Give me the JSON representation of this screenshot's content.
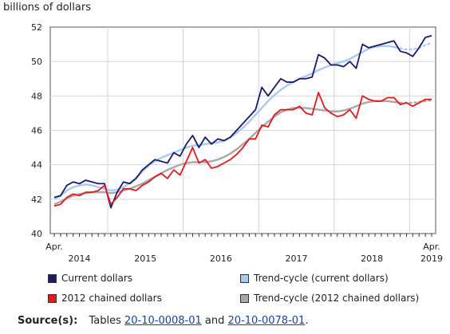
{
  "colors": {
    "current": "#1a1a6e",
    "trend_current": "#a9c9ee",
    "chained": "#e3191c",
    "trend_chained": "#a8a8a8"
  },
  "legend": {
    "current": "Current dollars",
    "trend_current": "Trend-cycle (current dollars)",
    "chained": "2012 chained dollars",
    "trend_chained": "Trend-cycle (2012 chained dollars)"
  },
  "source": {
    "label": "Source(s):",
    "prefix": "Tables",
    "table1": "20-10-0008-01",
    "and": "and",
    "table2": "20-10-0078-01",
    "end": "."
  },
  "chart_data": {
    "type": "line",
    "unit_label": "billions of dollars",
    "x_start": "2014-04",
    "x_end": "2019-04",
    "ylim": [
      40,
      52
    ],
    "yticks": [
      40,
      42,
      44,
      46,
      48,
      50,
      52
    ],
    "x_month_labels": [
      {
        "month": "2014-04",
        "text": "Apr."
      },
      {
        "month": "2019-04",
        "text": "Apr."
      }
    ],
    "x_year_labels": [
      "2014",
      "2015",
      "2016",
      "2017",
      "2018",
      "2019"
    ],
    "grid": true,
    "series": [
      {
        "name": "Current dollars",
        "key": "current",
        "values": [
          42.1,
          42.2,
          42.8,
          43.0,
          42.9,
          43.1,
          43.0,
          42.9,
          42.9,
          41.5,
          42.4,
          43.0,
          42.9,
          43.2,
          43.7,
          44.0,
          44.3,
          44.2,
          44.1,
          44.7,
          44.5,
          45.2,
          45.7,
          45.0,
          45.6,
          45.2,
          45.5,
          45.4,
          45.6,
          46.0,
          46.4,
          46.8,
          47.2,
          48.5,
          48.0,
          48.5,
          49.0,
          48.8,
          48.8,
          49.0,
          49.0,
          49.1,
          50.4,
          50.2,
          49.8,
          49.8,
          49.7,
          50.0,
          49.6,
          51.0,
          50.8,
          50.9,
          51.0,
          51.1,
          51.2,
          50.6,
          50.5,
          50.3,
          50.8,
          51.4,
          51.5
        ]
      },
      {
        "name": "Trend-cycle (current dollars)",
        "key": "trend_current",
        "values": [
          42.0,
          42.2,
          42.5,
          42.7,
          42.8,
          42.85,
          42.8,
          42.7,
          42.6,
          42.5,
          42.55,
          42.7,
          42.95,
          43.25,
          43.6,
          43.95,
          44.2,
          44.4,
          44.55,
          44.7,
          44.85,
          45.0,
          45.1,
          45.15,
          45.2,
          45.25,
          45.3,
          45.4,
          45.6,
          45.85,
          46.15,
          46.5,
          46.9,
          47.3,
          47.7,
          48.05,
          48.35,
          48.6,
          48.8,
          49.0,
          49.15,
          49.3,
          49.5,
          49.65,
          49.8,
          49.9,
          50.0,
          50.15,
          50.35,
          50.55,
          50.75,
          50.85,
          50.9,
          50.9,
          50.85,
          50.75,
          50.7,
          50.7,
          50.8,
          50.95,
          51.1
        ]
      },
      {
        "name": "2012 chained dollars",
        "key": "chained",
        "values": [
          41.6,
          41.7,
          42.1,
          42.3,
          42.2,
          42.4,
          42.4,
          42.5,
          42.8,
          41.7,
          42.1,
          42.6,
          42.6,
          42.5,
          42.8,
          43.0,
          43.3,
          43.5,
          43.2,
          43.7,
          43.4,
          44.2,
          45.0,
          44.1,
          44.3,
          43.8,
          43.9,
          44.1,
          44.3,
          44.6,
          45.0,
          45.5,
          45.5,
          46.3,
          46.2,
          46.9,
          47.2,
          47.2,
          47.2,
          47.4,
          47.0,
          46.9,
          48.2,
          47.3,
          47.0,
          46.8,
          46.9,
          47.2,
          46.7,
          48.0,
          47.8,
          47.7,
          47.7,
          47.9,
          47.9,
          47.5,
          47.6,
          47.4,
          47.6,
          47.8,
          47.8
        ]
      },
      {
        "name": "Trend-cycle (2012 chained dollars)",
        "key": "trend_chained",
        "values": [
          41.7,
          41.85,
          42.05,
          42.2,
          42.3,
          42.35,
          42.4,
          42.4,
          42.4,
          42.35,
          42.4,
          42.5,
          42.6,
          42.75,
          42.9,
          43.1,
          43.3,
          43.5,
          43.7,
          43.85,
          44.0,
          44.1,
          44.15,
          44.15,
          44.15,
          44.2,
          44.3,
          44.45,
          44.65,
          44.9,
          45.2,
          45.5,
          45.85,
          46.2,
          46.5,
          46.8,
          47.05,
          47.2,
          47.3,
          47.3,
          47.3,
          47.25,
          47.2,
          47.15,
          47.1,
          47.1,
          47.15,
          47.25,
          47.4,
          47.55,
          47.65,
          47.7,
          47.7,
          47.7,
          47.65,
          47.6,
          47.6,
          47.6,
          47.65,
          47.7,
          47.75
        ]
      }
    ]
  }
}
